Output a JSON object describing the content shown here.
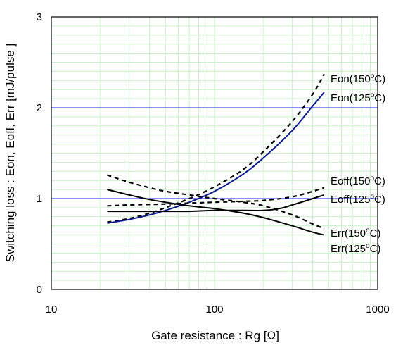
{
  "chart_data": {
    "type": "line",
    "xlabel": "Gate resistance : Rg [Ω]",
    "ylabel": "Switching loss  : Eon, Eoff, Err  [mJ/pulse ]",
    "xscale": "log",
    "xlim": [
      10,
      1000
    ],
    "ylim": [
      0,
      3
    ],
    "x_ticks": [
      10,
      100,
      1000
    ],
    "x_tick_labels": [
      "10",
      "100",
      "1000"
    ],
    "y_ticks": [
      0,
      1,
      2,
      3
    ],
    "y_tick_labels": [
      "0",
      "1",
      "2",
      "3"
    ],
    "grid": true,
    "colors": {
      "minor_grid": "#c9efc9",
      "major_grid": "#1a1aff",
      "blue_series": "#0c1a8c",
      "black_series": "#000000"
    },
    "series": [
      {
        "name": "Eon(150°C)",
        "label_text": "Eon(150",
        "label_unit": "C)",
        "style": "dashed",
        "color": "#000000",
        "x": [
          22,
          30,
          40,
          50,
          70,
          100,
          150,
          200,
          300,
          400,
          470
        ],
        "y": [
          0.74,
          0.78,
          0.84,
          0.9,
          1.0,
          1.13,
          1.32,
          1.52,
          1.85,
          2.15,
          2.37
        ]
      },
      {
        "name": "Eon(125°C)",
        "label_text": "Eon(125",
        "label_unit": "C)",
        "style": "solid",
        "color": "#0c1a8c",
        "x": [
          22,
          30,
          40,
          50,
          70,
          100,
          150,
          200,
          300,
          400,
          470
        ],
        "y": [
          0.73,
          0.77,
          0.82,
          0.87,
          0.96,
          1.08,
          1.27,
          1.45,
          1.75,
          2.02,
          2.17
        ]
      },
      {
        "name": "Eoff(150°C)",
        "label_text": "Eoff(150",
        "label_unit": "C)",
        "style": "dashed",
        "color": "#000000",
        "x": [
          22,
          30,
          50,
          70,
          100,
          150,
          200,
          300,
          400,
          470
        ],
        "y": [
          0.92,
          0.93,
          0.94,
          0.95,
          0.96,
          0.97,
          0.98,
          1.02,
          1.08,
          1.12
        ]
      },
      {
        "name": "Eoff(125°C)",
        "label_text": "Eoff(125",
        "label_unit": "C)",
        "style": "solid",
        "color": "#000000",
        "x": [
          22,
          30,
          50,
          70,
          100,
          150,
          200,
          250,
          300,
          400,
          470
        ],
        "y": [
          0.86,
          0.86,
          0.86,
          0.86,
          0.87,
          0.87,
          0.87,
          0.89,
          0.93,
          1.0,
          1.04
        ]
      },
      {
        "name": "Err(150°C)",
        "label_text": "Err(150",
        "label_unit": "C)",
        "style": "dashed",
        "color": "#000000",
        "x": [
          22,
          30,
          40,
          50,
          70,
          100,
          150,
          200,
          300,
          400,
          470
        ],
        "y": [
          1.26,
          1.18,
          1.12,
          1.08,
          1.04,
          1.0,
          0.96,
          0.92,
          0.82,
          0.72,
          0.67
        ]
      },
      {
        "name": "Err(125°C)",
        "label_text": "Err(125",
        "label_unit": "C)",
        "style": "solid",
        "color": "#000000",
        "x": [
          22,
          30,
          40,
          50,
          70,
          100,
          150,
          200,
          300,
          400,
          470
        ],
        "y": [
          1.1,
          1.04,
          0.99,
          0.96,
          0.92,
          0.89,
          0.84,
          0.79,
          0.7,
          0.63,
          0.6
        ]
      }
    ]
  }
}
